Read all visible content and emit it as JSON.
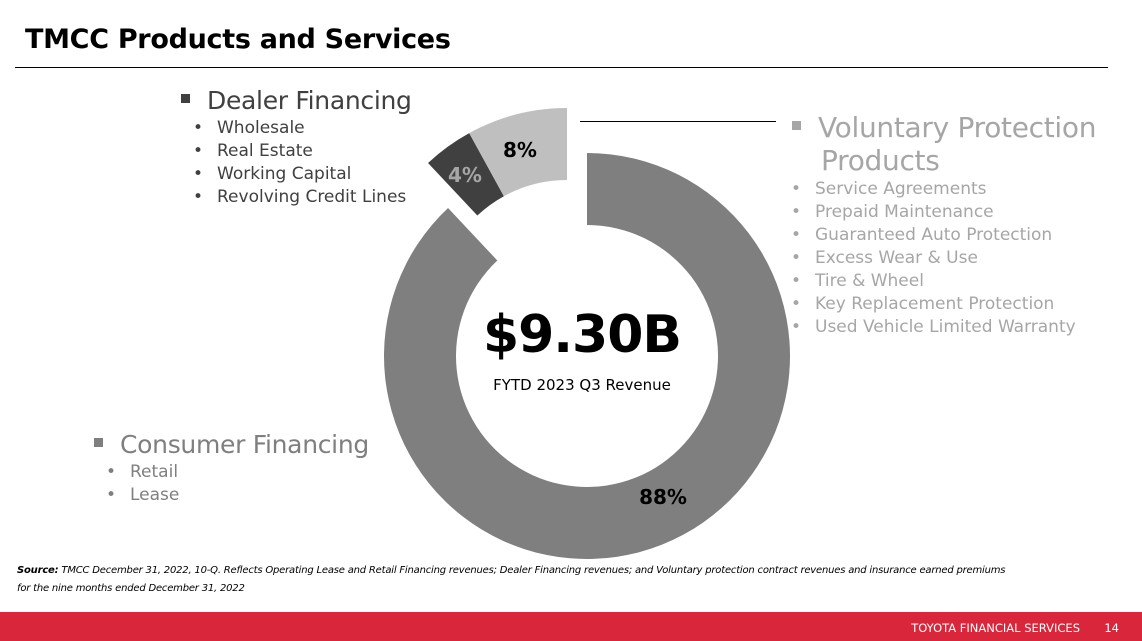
{
  "title": "TMCC Products and Services",
  "dealer": {
    "heading": "Dealer Financing",
    "items": [
      "Wholesale",
      "Real Estate",
      "Working Capital",
      "Revolving Credit Lines"
    ]
  },
  "voluntary": {
    "heading_line1": "Voluntary Protection",
    "heading_line2": "Products",
    "items": [
      "Service Agreements",
      "Prepaid Maintenance",
      "Guaranteed Auto Protection",
      "Excess Wear & Use",
      "Tire & Wheel",
      "Key Replacement Protection",
      "Used Vehicle Limited Warranty"
    ]
  },
  "consumer": {
    "heading": "Consumer Financing",
    "items": [
      "Retail",
      "Lease"
    ]
  },
  "chart_data": {
    "type": "pie",
    "variant": "donut",
    "center_value": "$9.30B",
    "center_label": "FYTD 2023 Q3 Revenue",
    "slices": [
      {
        "name": "Consumer Financing",
        "value": 88,
        "label": "88%",
        "color": "#7f7f7f"
      },
      {
        "name": "Dealer Financing",
        "value": 4,
        "label": "4%",
        "color": "#404040"
      },
      {
        "name": "Voluntary Protection Products",
        "value": 8,
        "label": "8%",
        "color": "#bfbfbf"
      }
    ]
  },
  "source": {
    "label": "Source:",
    "text": " TMCC December 31, 2022, 10-Q.  Reflects Operating Lease and Retail Financing revenues; Dealer Financing revenues; and Voluntary  protection  contract  revenues and insurance earned premiums for the nine months ended December 31, 2022"
  },
  "footer": {
    "company": "TOYOTA FINANCIAL SERVICES",
    "page": "14"
  },
  "colors": {
    "footer": "#d9263a"
  }
}
